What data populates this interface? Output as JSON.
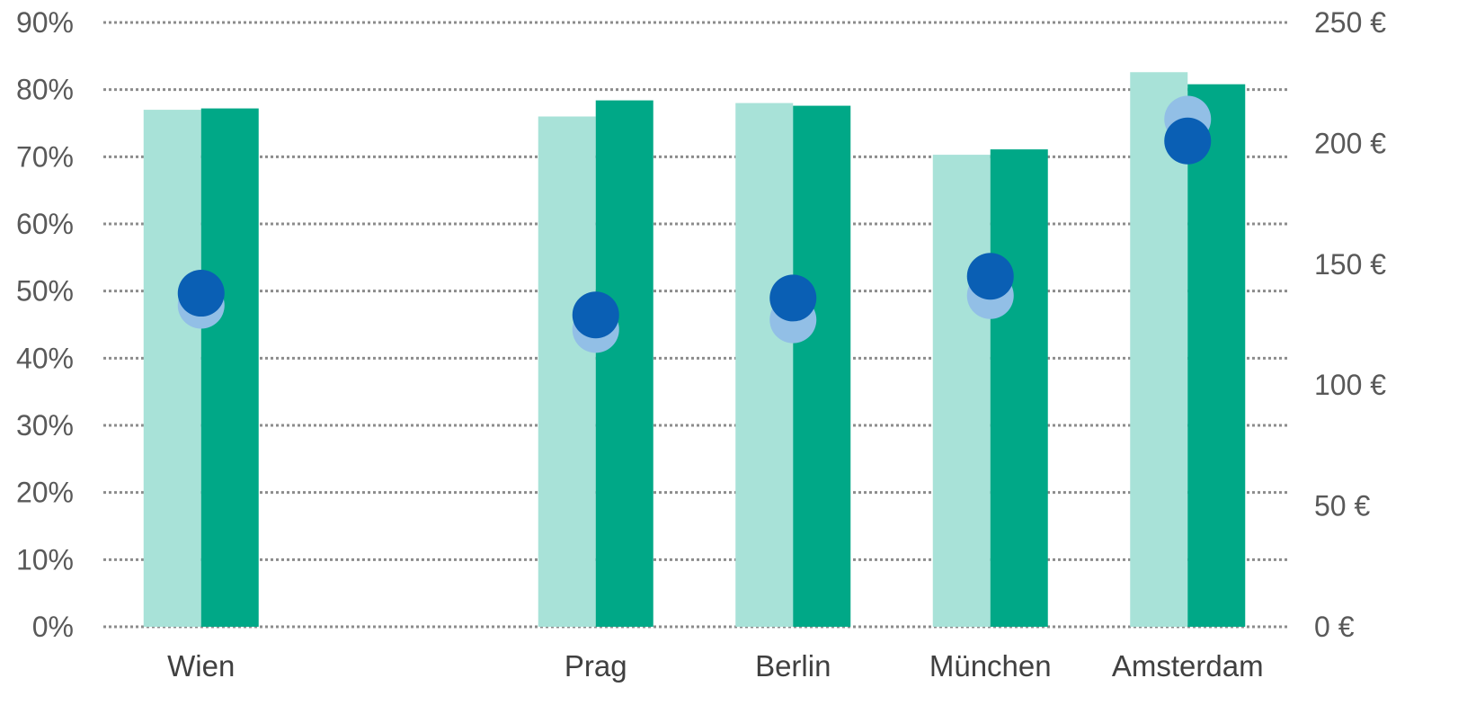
{
  "chart_data": {
    "type": "bar",
    "title": "",
    "categories": [
      "Wien",
      "",
      "Prag",
      "Berlin",
      "München",
      "Amsterdam"
    ],
    "series": [
      {
        "kind": "bar",
        "axis": "left",
        "color": "#a8e2d8",
        "values": [
          77,
          null,
          76,
          78,
          70.3,
          82.6
        ]
      },
      {
        "kind": "bar",
        "axis": "left",
        "color": "#00a887",
        "values": [
          77.2,
          null,
          78.4,
          77.6,
          71.1,
          80.8
        ]
      },
      {
        "kind": "dot",
        "axis": "right",
        "color": "#92bfe6",
        "values": [
          133,
          null,
          123,
          127,
          137,
          210
        ]
      },
      {
        "kind": "dot",
        "axis": "right",
        "color": "#0a5fb4",
        "values": [
          138,
          null,
          129,
          136,
          145,
          201
        ]
      }
    ],
    "y_left": {
      "min": 0,
      "max": 90,
      "ticks": [
        "0%",
        "10%",
        "20%",
        "30%",
        "40%",
        "50%",
        "60%",
        "70%",
        "80%",
        "90%"
      ]
    },
    "y_right": {
      "min": 0,
      "max": 250,
      "ticks": [
        "0 €",
        "50 €",
        "100 €",
        "150 €",
        "200 €",
        "250 €"
      ]
    },
    "grid": true,
    "legend": "none"
  }
}
